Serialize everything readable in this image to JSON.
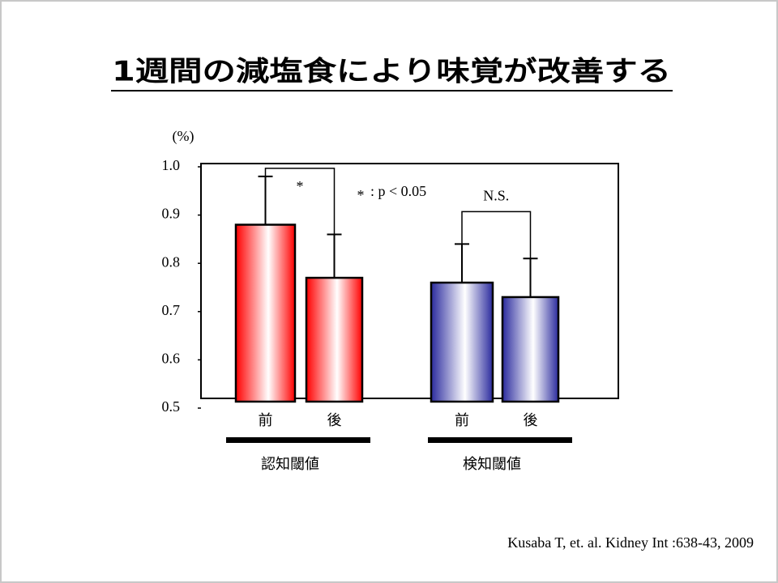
{
  "chart_data": {
    "type": "bar",
    "title": "1週間の減塩食により味覚が改善する",
    "y_unit": "(%)",
    "categories": [
      "前",
      "後",
      "前",
      "後"
    ],
    "values": [
      0.88,
      0.77,
      0.76,
      0.73
    ],
    "errors": [
      0.1,
      0.09,
      0.08,
      0.08
    ],
    "colors": [
      "#ff0000",
      "#ff0000",
      "#2b2b9e",
      "#2b2b9e"
    ],
    "groups": [
      "認知閾値",
      "検知閾値"
    ],
    "ylim": [
      0.5,
      1.0
    ],
    "yticks": [
      0.5,
      0.6,
      0.7,
      0.8,
      0.9,
      {
        "value": 1.0,
        "label": "1.0"
      }
    ],
    "significance": [
      {
        "label": "*"
      },
      {
        "label": "N.S."
      }
    ],
    "legend_star": "*",
    "legend_text": ": p < 0.05",
    "citation": "Kusaba T, et. al. Kidney Int :638-43, 2009"
  }
}
